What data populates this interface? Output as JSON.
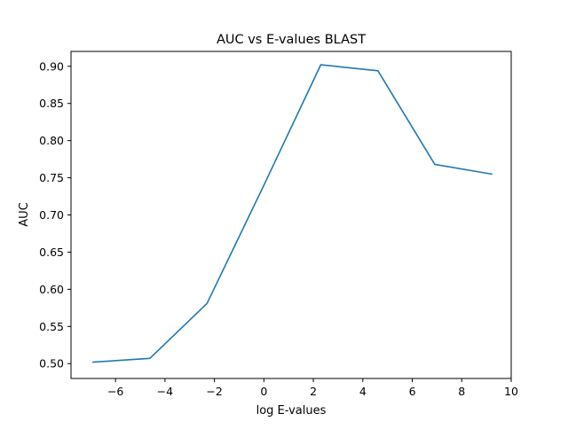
{
  "chart_data": {
    "type": "line",
    "title": "AUC vs E-values BLAST",
    "xlabel": "log E-values",
    "ylabel": "AUC",
    "xlim": [
      -7.8,
      10.0
    ],
    "ylim": [
      0.48,
      0.92
    ],
    "xticks": [
      -6,
      -4,
      -2,
      0,
      2,
      4,
      6,
      8,
      10
    ],
    "xtick_labels": [
      "−6",
      "−4",
      "−2",
      "0",
      "2",
      "4",
      "6",
      "8",
      "10"
    ],
    "yticks": [
      0.5,
      0.55,
      0.6,
      0.65,
      0.7,
      0.75,
      0.8,
      0.85,
      0.9
    ],
    "ytick_labels": [
      "0.50",
      "0.55",
      "0.60",
      "0.65",
      "0.70",
      "0.75",
      "0.80",
      "0.85",
      "0.90"
    ],
    "grid": false,
    "series": [
      {
        "color": "#1f77b4",
        "x": [
          -6.91,
          -4.61,
          -2.3,
          0.0,
          2.3,
          4.61,
          6.91,
          9.21
        ],
        "y": [
          0.502,
          0.507,
          0.581,
          0.74,
          0.902,
          0.894,
          0.768,
          0.755
        ]
      }
    ]
  }
}
